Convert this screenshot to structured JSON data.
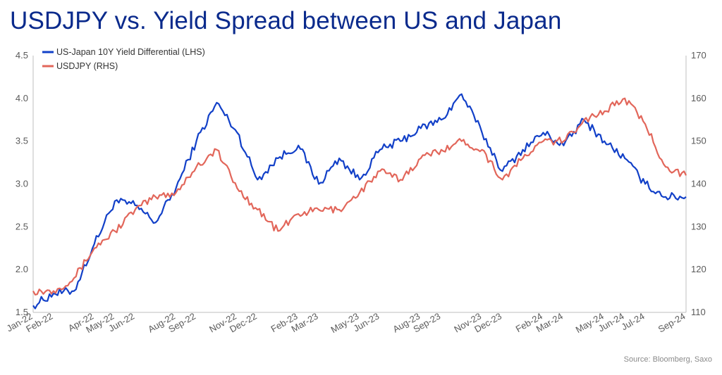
{
  "title": "USDJPY vs. Yield Spread between US and Japan",
  "source": "Source: Bloomberg, Saxo",
  "colors": {
    "title": "#0a2a8c",
    "series_blue": "#1240c8",
    "series_red": "#e2665a",
    "axis": "#bfbfbf"
  },
  "chart_data": {
    "type": "line",
    "title": "USDJPY vs. Yield Spread between US and Japan",
    "legend_position": "top-left",
    "grid": false,
    "x_range": [
      "2022-01",
      "2024-09"
    ],
    "x_ticks": [
      "Jan-22",
      "Feb-22",
      "Apr-22",
      "May-22",
      "Jun-22",
      "Aug-22",
      "Sep-22",
      "Nov-22",
      "Dec-22",
      "Feb-23",
      "Mar-23",
      "May-23",
      "Jun-23",
      "Aug-23",
      "Sep-23",
      "Nov-23",
      "Dec-23",
      "Feb-24",
      "Mar-24",
      "May-24",
      "Jun-24",
      "Jul-24",
      "Sep-24"
    ],
    "y_left": {
      "min": 1.5,
      "max": 4.5,
      "ticks": [
        "1.5",
        "2.0",
        "2.5",
        "3.0",
        "3.5",
        "4.0",
        "4.5"
      ]
    },
    "y_right": {
      "min": 110,
      "max": 170,
      "ticks": [
        "110",
        "120",
        "130",
        "140",
        "150",
        "160",
        "170"
      ]
    },
    "series": [
      {
        "name": "US-Japan 10Y Yield Differential (LHS)",
        "axis": "left",
        "x": [
          "2022-01",
          "2022-02",
          "2022-03",
          "2022-04",
          "2022-05",
          "2022-06",
          "2022-07",
          "2022-08",
          "2022-09",
          "2022-10",
          "2022-11",
          "2022-12",
          "2023-01",
          "2023-02",
          "2023-03",
          "2023-04",
          "2023-05",
          "2023-06",
          "2023-07",
          "2023-08",
          "2023-09",
          "2023-10",
          "2023-11",
          "2023-12",
          "2024-01",
          "2024-02",
          "2024-03",
          "2024-04",
          "2024-05",
          "2024-06",
          "2024-07",
          "2024-08",
          "2024-09"
        ],
        "y": [
          1.58,
          1.72,
          1.75,
          2.3,
          2.8,
          2.75,
          2.55,
          2.95,
          3.5,
          3.95,
          3.6,
          3.05,
          3.3,
          3.45,
          3.0,
          3.3,
          3.05,
          3.4,
          3.5,
          3.65,
          3.75,
          4.05,
          3.6,
          3.15,
          3.4,
          3.6,
          3.45,
          3.75,
          3.5,
          3.3,
          3.0,
          2.85,
          2.85
        ]
      },
      {
        "name": "USDJPY (RHS)",
        "axis": "right",
        "x": [
          "2022-01",
          "2022-02",
          "2022-03",
          "2022-04",
          "2022-05",
          "2022-06",
          "2022-07",
          "2022-08",
          "2022-09",
          "2022-10",
          "2022-11",
          "2022-12",
          "2023-01",
          "2023-02",
          "2023-03",
          "2023-04",
          "2023-05",
          "2023-06",
          "2023-07",
          "2023-08",
          "2023-09",
          "2023-10",
          "2023-11",
          "2023-12",
          "2024-01",
          "2024-02",
          "2024-03",
          "2024-04",
          "2024-05",
          "2024-06",
          "2024-07",
          "2024-08",
          "2024-09"
        ],
        "y": [
          115,
          115,
          118,
          125,
          129,
          134,
          137,
          138,
          144,
          148,
          139,
          134,
          129,
          133,
          134,
          134,
          138,
          143,
          141,
          146,
          148,
          150,
          148,
          141,
          146,
          150,
          150,
          155,
          157,
          160,
          154,
          144,
          142
        ]
      }
    ]
  }
}
